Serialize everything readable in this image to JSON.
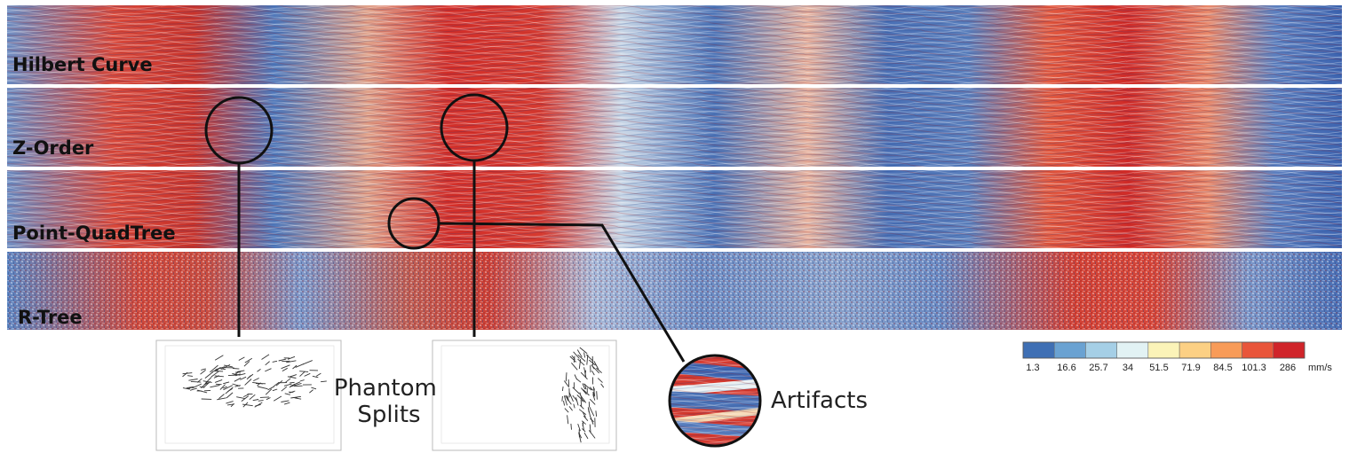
{
  "bands": [
    {
      "label": "Hilbert Curve",
      "kind": "smooth"
    },
    {
      "label": "Z-Order",
      "kind": "smooth"
    },
    {
      "label": "Point-QuadTree",
      "kind": "smooth"
    },
    {
      "label": "R-Tree",
      "kind": "noisy"
    }
  ],
  "annotations": {
    "phantom_splits": "Phantom\nSplits",
    "artifacts": "Artifacts"
  },
  "colorbar": {
    "ticks": [
      "1.3",
      "16.6",
      "25.7",
      "34",
      "51.5",
      "71.9",
      "84.5",
      "101.3",
      "286"
    ],
    "unit": "mm/s",
    "colors": [
      "#3f6fb4",
      "#6aa2d2",
      "#a5cfe6",
      "#e2f2f4",
      "#fbf3b8",
      "#fcd084",
      "#f89b58",
      "#e9553a",
      "#d0242a"
    ]
  },
  "palette": {
    "blue": "#3b65b0",
    "red": "#d52a27",
    "white": "#eef3f2"
  },
  "icons": {
    "callout": "circle-magnifier-icon"
  }
}
